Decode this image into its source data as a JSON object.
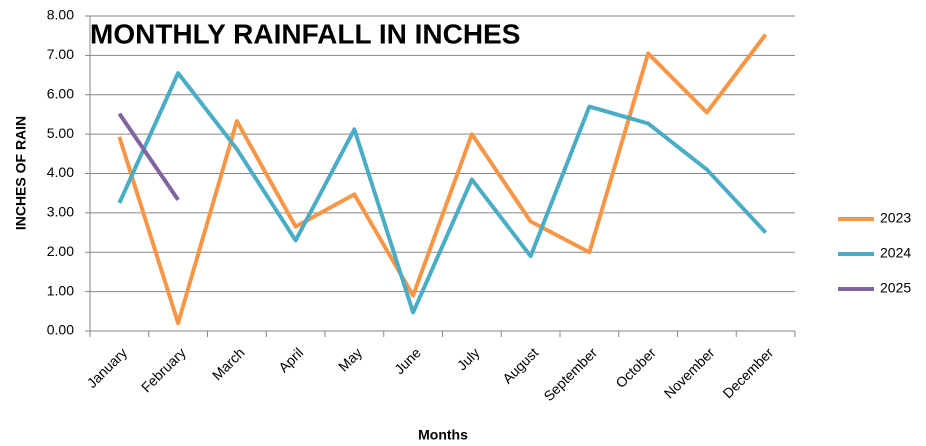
{
  "chart_data": {
    "type": "line",
    "title": "MONTHLY RAINFALL IN INCHES",
    "x_label": "Months",
    "y_label": "INCHES OF RAIN",
    "categories": [
      "January",
      "February",
      "March",
      "April",
      "May",
      "June",
      "July",
      "August",
      "September",
      "October",
      "November",
      "December"
    ],
    "series": [
      {
        "name": "2023",
        "color": "#f79646",
        "values": [
          4.93,
          0.2,
          5.33,
          2.65,
          3.47,
          0.9,
          5.0,
          2.78,
          2.0,
          7.05,
          5.55,
          7.53
        ]
      },
      {
        "name": "2024",
        "color": "#4bacc6",
        "values": [
          3.25,
          6.55,
          4.62,
          2.3,
          5.12,
          0.47,
          3.85,
          1.9,
          5.7,
          5.27,
          4.1,
          2.5
        ]
      },
      {
        "name": "2025",
        "color": "#8064a2",
        "values": [
          5.52,
          3.33,
          null,
          null,
          null,
          null,
          null,
          null,
          null,
          null,
          null,
          null
        ]
      }
    ],
    "ylim": [
      0,
      8
    ],
    "yticks": [
      {
        "value": 0,
        "label": "0.00"
      },
      {
        "value": 1,
        "label": "1.00"
      },
      {
        "value": 2,
        "label": "2.00"
      },
      {
        "value": 3,
        "label": "3.00"
      },
      {
        "value": 4,
        "label": "4.00"
      },
      {
        "value": 5,
        "label": "5.00"
      },
      {
        "value": 6,
        "label": "6.00"
      },
      {
        "value": 7,
        "label": "7.00"
      },
      {
        "value": 8,
        "label": "8.00"
      }
    ],
    "grid": true,
    "legend": "right"
  }
}
